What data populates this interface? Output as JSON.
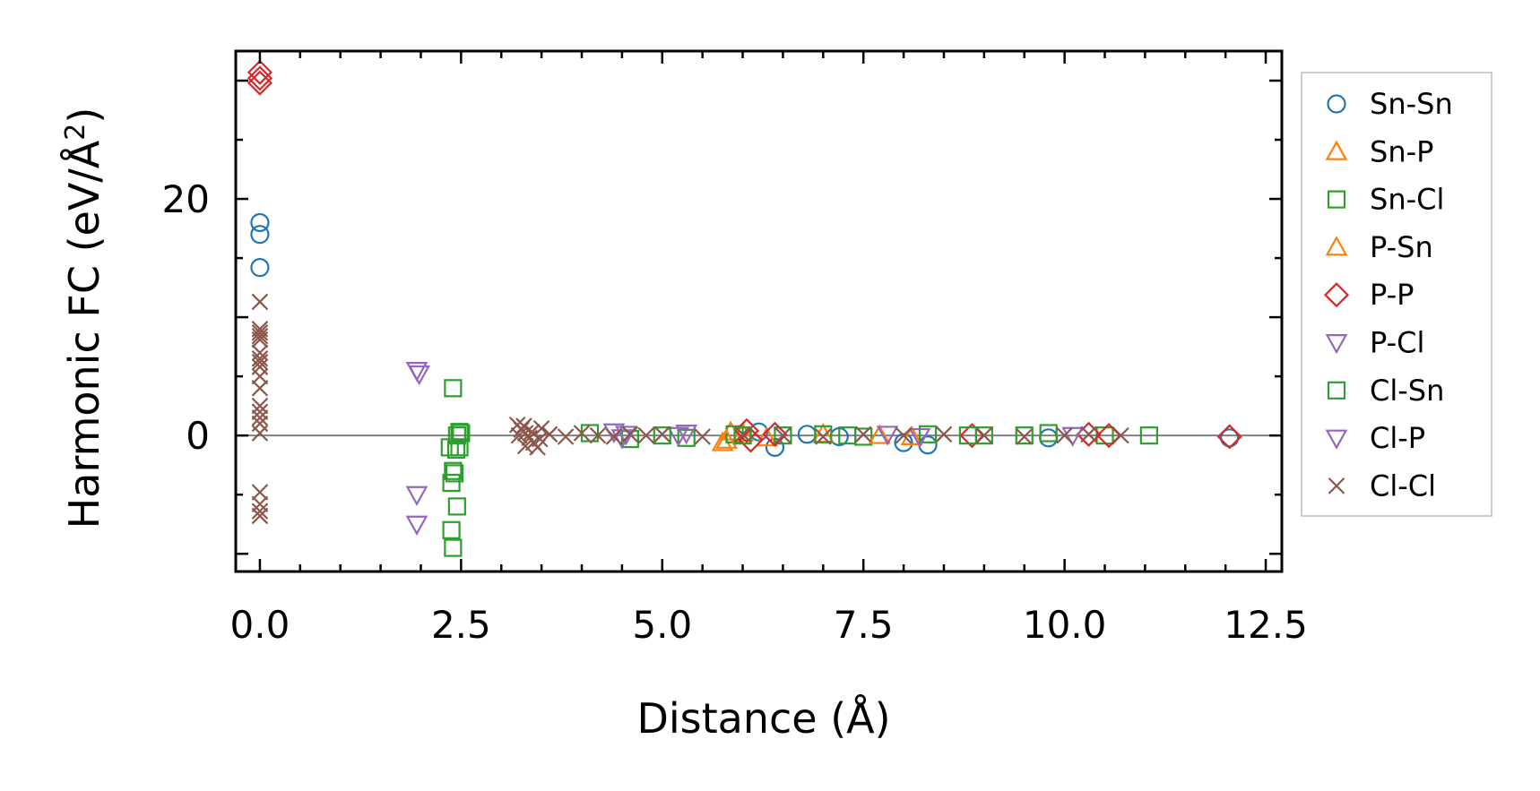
{
  "chart_data": {
    "type": "scatter",
    "xlabel": "Distance (Å)",
    "ylabel_main": "Harmonic FC (eV/Å",
    "ylabel_sup": "2",
    "ylabel_close": ")",
    "xlim": [
      -0.3,
      12.7
    ],
    "ylim": [
      -11.5,
      32.5
    ],
    "xticks": [
      0.0,
      2.5,
      5.0,
      7.5,
      10.0,
      12.5
    ],
    "xtick_labels": [
      "0.0",
      "2.5",
      "5.0",
      "7.5",
      "10.0",
      "12.5"
    ],
    "yticks": [
      0,
      20
    ],
    "ytick_labels": [
      "0",
      "20"
    ],
    "zero_line": true,
    "legend_position": "outside-right",
    "series": [
      {
        "name": "Sn-Sn",
        "marker": "circle",
        "color": "#1f77b4",
        "x": [
          0,
          0,
          0,
          6.2,
          6.4,
          8.0,
          8.3,
          9.8,
          12.05,
          6.8,
          7.2
        ],
        "y": [
          18.0,
          17.0,
          14.2,
          0.3,
          -1.0,
          -0.6,
          -0.8,
          -0.2,
          -0.2,
          0.1,
          -0.1
        ]
      },
      {
        "name": "Sn-P",
        "marker": "triangle-up",
        "color": "#ff7f0e",
        "x": [
          5.75,
          5.85,
          6.3,
          7.0,
          8.1
        ],
        "y": [
          -0.6,
          0.3,
          -0.2,
          0.1,
          -0.1
        ]
      },
      {
        "name": "Sn-Cl",
        "marker": "square",
        "color": "#2ca02c",
        "x": [
          2.4,
          2.38,
          2.45,
          2.48,
          2.4,
          2.38,
          2.36,
          2.4,
          2.48,
          2.45,
          2.5,
          4.1,
          4.6,
          5.3,
          5.9,
          6.5,
          7.0,
          7.5,
          8.3,
          9.0,
          9.8,
          10.5,
          11.05
        ],
        "y": [
          4.0,
          -8.0,
          -6.0,
          0.3,
          -3.0,
          -4.0,
          -1.0,
          -9.5,
          -1.0,
          0.0,
          0.2,
          0.2,
          -0.3,
          -0.2,
          0.1,
          0.0,
          0.1,
          -0.1,
          0.1,
          0.0,
          0.2,
          0.0,
          0.0
        ]
      },
      {
        "name": "P-Sn",
        "marker": "triangle-up",
        "color": "#ff7f0e",
        "x": [
          5.8,
          6.0,
          7.7
        ],
        "y": [
          -0.4,
          0.2,
          0.0
        ]
      },
      {
        "name": "P-P",
        "marker": "diamond",
        "color": "#d62728",
        "x": [
          0,
          0,
          0,
          6.05,
          6.1,
          6.4,
          8.85,
          10.3,
          10.55,
          12.05
        ],
        "y": [
          30.7,
          30.2,
          29.8,
          0.4,
          -0.4,
          0.1,
          0.0,
          0.1,
          0.0,
          -0.1
        ]
      },
      {
        "name": "P-Cl",
        "marker": "triangle-down",
        "color": "#9467bd",
        "x": [
          1.95,
          1.95,
          4.4,
          4.5,
          5.2,
          5.3,
          7.8,
          8.2,
          10.1
        ],
        "y": [
          5.5,
          -5.0,
          0.3,
          -0.2,
          0.0,
          0.2,
          0.1,
          -0.1,
          0.0
        ]
      },
      {
        "name": "Cl-Sn",
        "marker": "square",
        "color": "#2ca02c",
        "x": [
          2.42,
          2.44,
          5.0,
          6.0,
          7.3,
          8.8,
          9.5
        ],
        "y": [
          -3.2,
          -1.2,
          0.0,
          0.0,
          0.0,
          0.0,
          0.0
        ]
      },
      {
        "name": "Cl-P",
        "marker": "triangle-down",
        "color": "#9467bd",
        "x": [
          1.95,
          1.98,
          4.55
        ],
        "y": [
          -7.5,
          5.2,
          0.1
        ]
      },
      {
        "name": "Cl-Cl",
        "marker": "x",
        "color": "#8c564b",
        "x": [
          0,
          0,
          0,
          0,
          0,
          0,
          0,
          0,
          0,
          0,
          0,
          0,
          0,
          0,
          0,
          0,
          0,
          0,
          0,
          0,
          3.2,
          3.25,
          3.3,
          3.35,
          3.4,
          3.45,
          3.5,
          3.3,
          3.22,
          3.38,
          3.48,
          3.28,
          3.6,
          3.8,
          4.0,
          4.2,
          4.4,
          4.6,
          4.8,
          5.0,
          5.5,
          6.0,
          6.5,
          7.0,
          7.5,
          8.0,
          8.5,
          9.0,
          9.5,
          10.0,
          10.3,
          10.7
        ],
        "y": [
          11.3,
          9.0,
          8.7,
          8.4,
          8.1,
          7.0,
          6.5,
          6.2,
          5.8,
          5.0,
          4.0,
          2.5,
          2.0,
          1.5,
          1.0,
          0.2,
          -4.8,
          -5.8,
          -6.4,
          -6.8,
          0.9,
          0.5,
          0.2,
          -0.2,
          -0.6,
          -1.0,
          0.6,
          -0.9,
          0.0,
          0.3,
          -0.3,
          0.8,
          0.1,
          -0.1,
          0.2,
          0.0,
          -0.1,
          0.1,
          0.0,
          0.1,
          -0.1,
          0.1,
          0.0,
          -0.1,
          0.1,
          0.0,
          0.1,
          0.0,
          -0.1,
          0.0,
          0.1,
          0.0
        ]
      }
    ]
  }
}
